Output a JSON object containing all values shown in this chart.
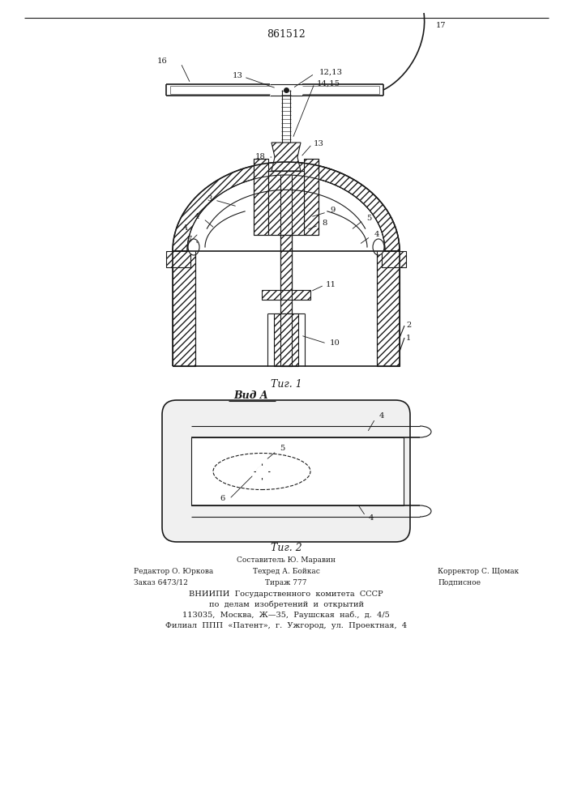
{
  "patent_number": "861512",
  "fig1_caption": "Τиг. 1",
  "fig2_caption": "Τиг. 2",
  "view_label": "Вид A",
  "bg_color": "#ffffff",
  "line_color": "#1a1a1a",
  "footer_line0": "Составитель Ю. Маравин",
  "footer_line1_left": "Редактор О. Юркова",
  "footer_line1_mid": "Техред А. Бойкас",
  "footer_line1_right": "Корректор С. Щомак",
  "footer_line2_left": "Заказ 6473/12",
  "footer_line2_mid": "Тираж 777",
  "footer_line2_right": "Подписное",
  "footer_line3": "ВНИИПИ  Государственного  комитета  СССР",
  "footer_line4": "по  делам  изобретений  и  открытий",
  "footer_line5": "113035,  Москва,  Ж—35,  Раушская  наб.,  д.  4/5",
  "footer_line6": "Филиал  ППП  «Патент»,  г.  Ужгород,  ул.  Проектная,  4"
}
